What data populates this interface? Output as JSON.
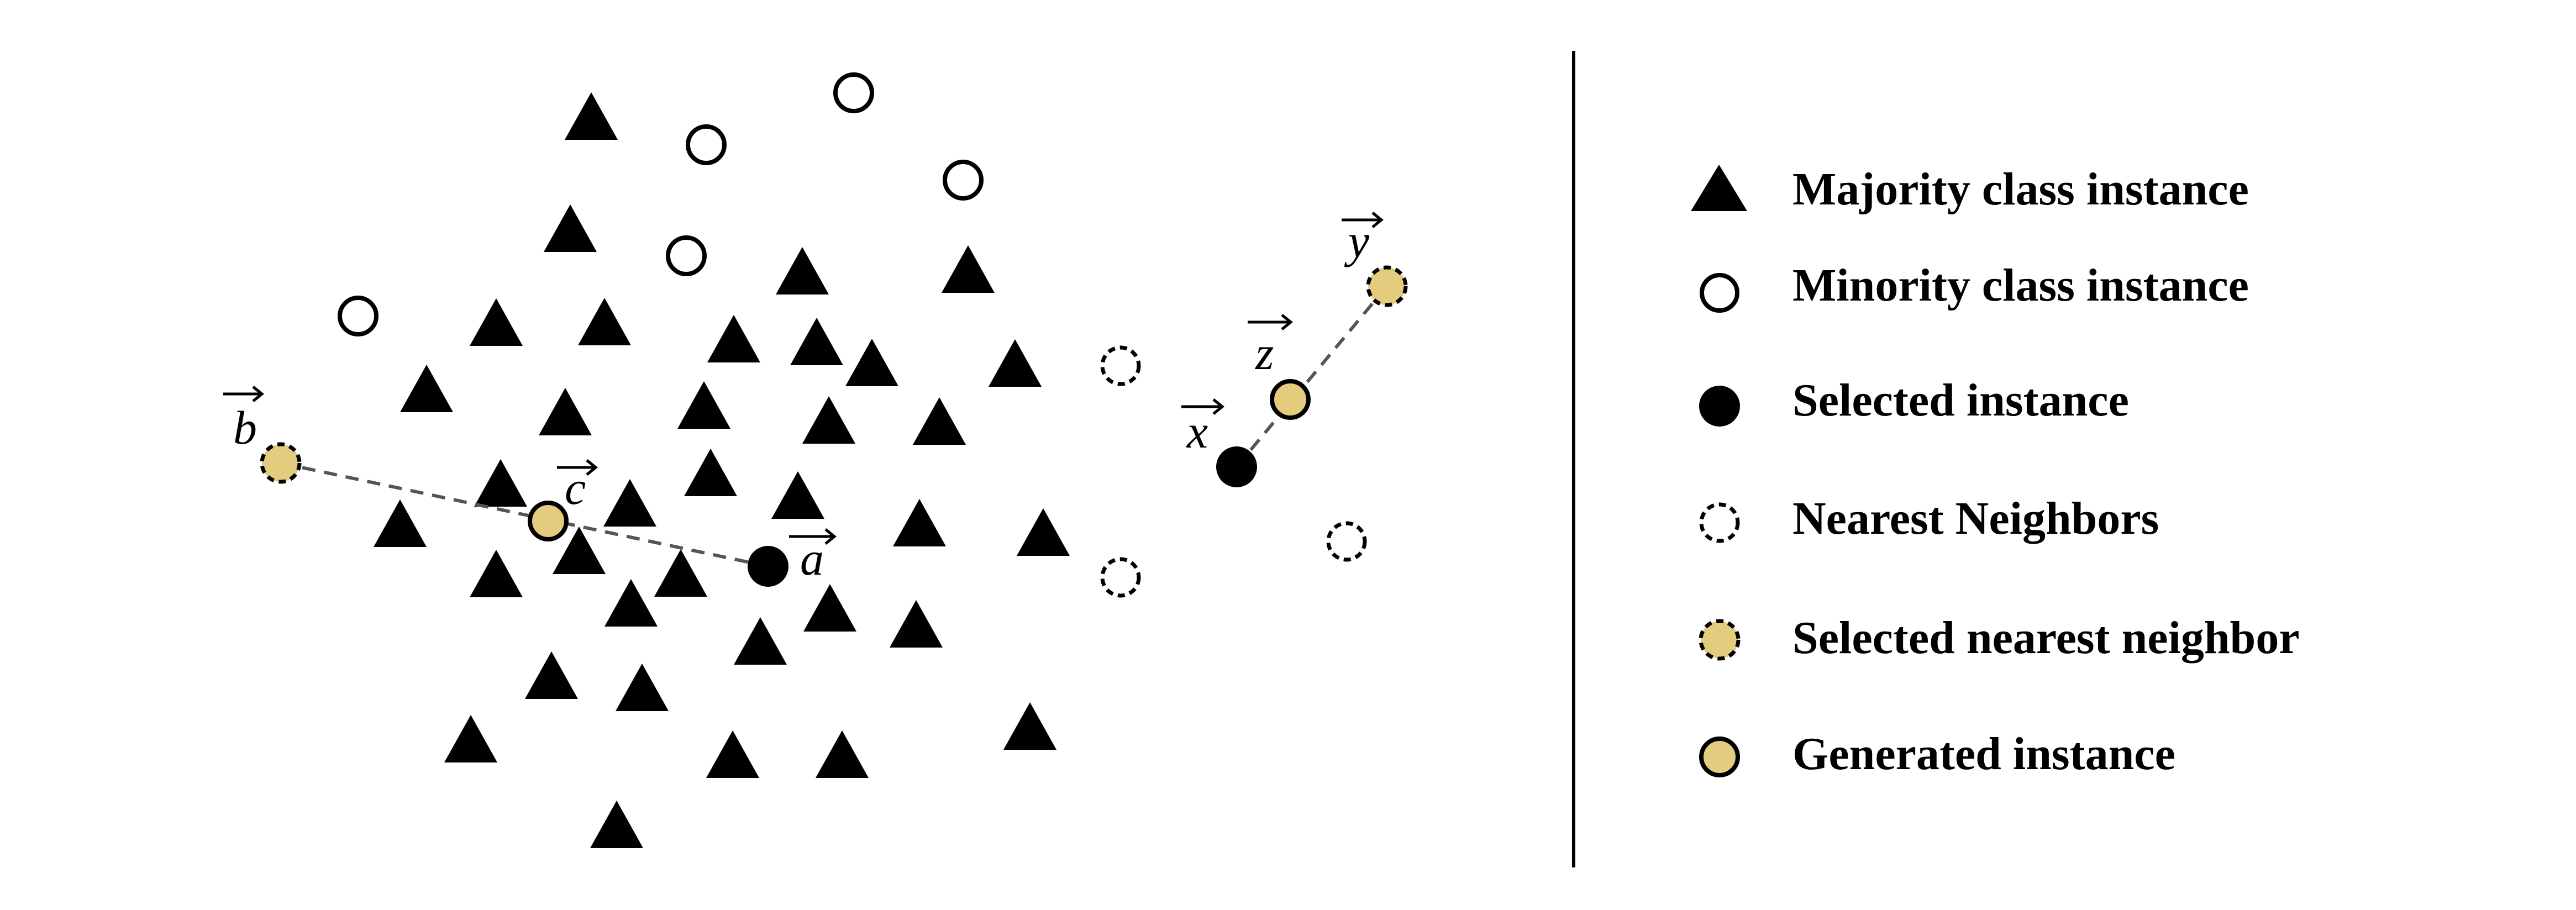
{
  "colors": {
    "ink": "#000000",
    "background": "#ffffff",
    "highlight_fill": "#e3cc7e",
    "connector": "#555555"
  },
  "vectors": {
    "a": "a",
    "b": "b",
    "c": "c",
    "x": "x",
    "y": "y",
    "z": "z"
  },
  "legend": {
    "items": [
      {
        "marker": "filled-triangle",
        "label": "Majority class instance"
      },
      {
        "marker": "hollow-circle",
        "label": "Minority class instance"
      },
      {
        "marker": "filled-circle",
        "label": "Selected instance"
      },
      {
        "marker": "dashed-circle",
        "label": "Nearest Neighbors"
      },
      {
        "marker": "dashed-filled-circle",
        "label": "Selected nearest neighbor"
      },
      {
        "marker": "solid-filled-circle",
        "label": "Generated instance"
      }
    ]
  }
}
